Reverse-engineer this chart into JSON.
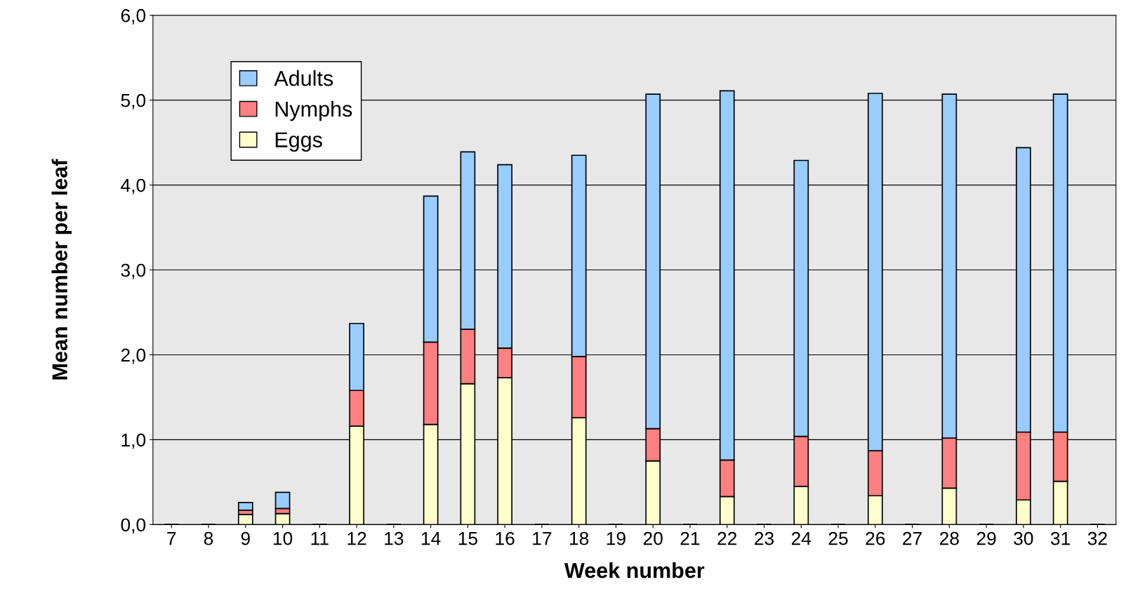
{
  "chart_data": {
    "type": "bar",
    "stacked": true,
    "xlabel": "Week number",
    "ylabel": "Mean number per leaf",
    "categories": [
      "7",
      "8",
      "9",
      "10",
      "11",
      "12",
      "13",
      "14",
      "15",
      "16",
      "17",
      "18",
      "19",
      "20",
      "21",
      "22",
      "23",
      "24",
      "25",
      "26",
      "27",
      "28",
      "29",
      "30",
      "31",
      "32"
    ],
    "series": [
      {
        "name": "Eggs",
        "color": "#ffffcc",
        "values": [
          null,
          null,
          0.12,
          0.13,
          null,
          1.16,
          null,
          1.18,
          1.66,
          1.73,
          null,
          1.26,
          null,
          0.75,
          null,
          0.33,
          null,
          0.45,
          null,
          0.34,
          null,
          0.43,
          null,
          0.29,
          0.51,
          null
        ]
      },
      {
        "name": "Nymphs",
        "color": "#ff8080",
        "values": [
          null,
          null,
          0.05,
          0.06,
          null,
          0.42,
          null,
          0.97,
          0.64,
          0.35,
          null,
          0.72,
          null,
          0.38,
          null,
          0.43,
          null,
          0.59,
          null,
          0.53,
          null,
          0.59,
          null,
          0.8,
          0.58,
          null
        ]
      },
      {
        "name": "Adults",
        "color": "#99ccff",
        "values": [
          null,
          null,
          0.09,
          0.19,
          null,
          0.79,
          null,
          1.72,
          2.09,
          2.16,
          null,
          2.37,
          null,
          3.94,
          null,
          4.35,
          null,
          3.25,
          null,
          4.21,
          null,
          4.05,
          null,
          3.35,
          3.98,
          null
        ]
      }
    ],
    "ylim": [
      0,
      6
    ],
    "yticks": [
      {
        "value": 0,
        "label": "0,0"
      },
      {
        "value": 1,
        "label": "1,0"
      },
      {
        "value": 2,
        "label": "2,0"
      },
      {
        "value": 3,
        "label": "3,0"
      },
      {
        "value": 4,
        "label": "4,0"
      },
      {
        "value": 5,
        "label": "5,0"
      },
      {
        "value": 6,
        "label": "6,0"
      }
    ],
    "grid": "y",
    "legend": "top left"
  }
}
